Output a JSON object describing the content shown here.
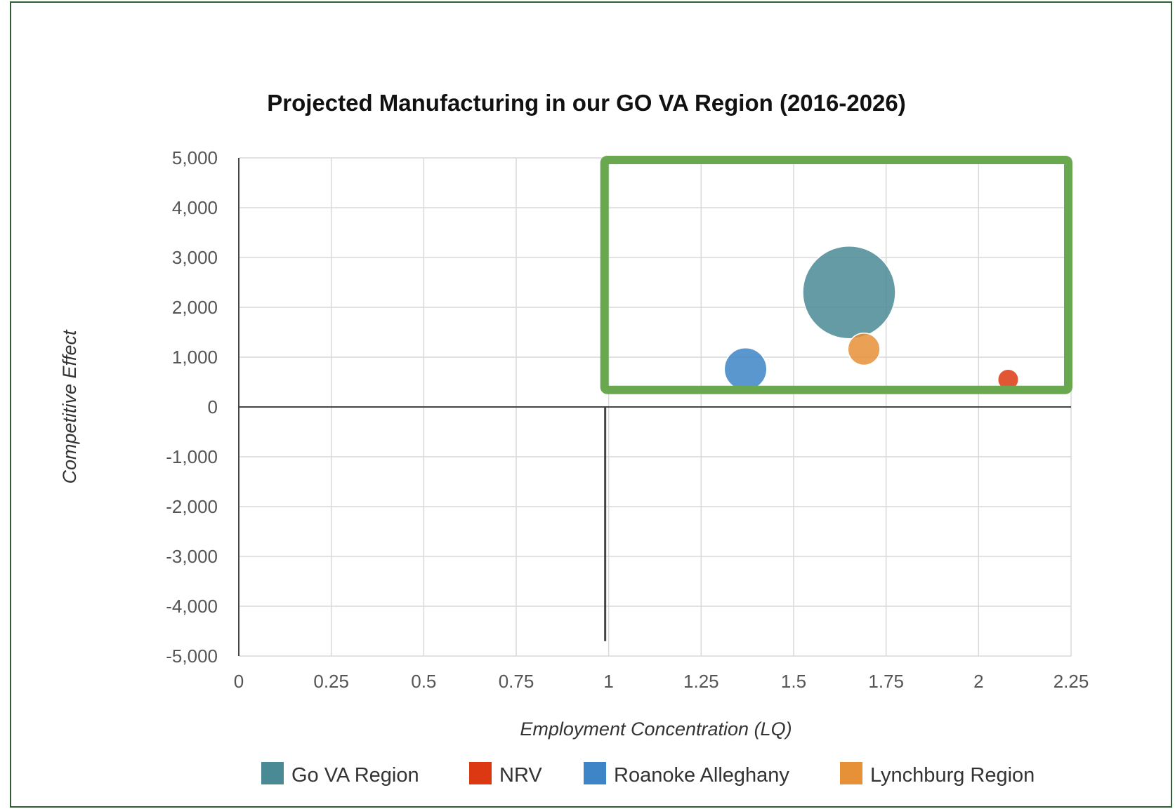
{
  "chart_data": {
    "type": "bubble",
    "title": "Projected Manufacturing in our GO VA Region (2016-2026)",
    "xlabel": "Employment Concentration (LQ)",
    "ylabel": "Competitive Effect",
    "xlim": [
      0,
      2.25
    ],
    "ylim": [
      -5000,
      5000
    ],
    "xticks": [
      "0",
      "0.25",
      "0.5",
      "0.75",
      "1",
      "1.25",
      "1.5",
      "1.75",
      "2",
      "2.25"
    ],
    "yticks": [
      "5,000",
      "4,000",
      "3,000",
      "2,000",
      "1,000",
      "0",
      "-1,000",
      "-2,000",
      "-3,000",
      "-4,000",
      "-5,000"
    ],
    "grid": true,
    "legend_position": "bottom",
    "reference_line": {
      "x": 1,
      "y_from": -4700,
      "y_to": 0
    },
    "highlight_box": {
      "x_from": 1,
      "x_to": 2.25,
      "y_from": 300,
      "y_to": 5000,
      "color": "#6aa84f"
    },
    "series": [
      {
        "name": "Go VA Region",
        "x": 1.65,
        "y": 2300,
        "size": 100,
        "color": "#4a8a94"
      },
      {
        "name": "NRV",
        "x": 2.08,
        "y": 550,
        "size": 5,
        "color": "#dc3912"
      },
      {
        "name": "Roanoke Alleghany",
        "x": 1.37,
        "y": 760,
        "size": 21,
        "color": "#3d85c6"
      },
      {
        "name": "Lynchburg Region",
        "x": 1.69,
        "y": 1160,
        "size": 12,
        "color": "#e69138"
      }
    ]
  }
}
